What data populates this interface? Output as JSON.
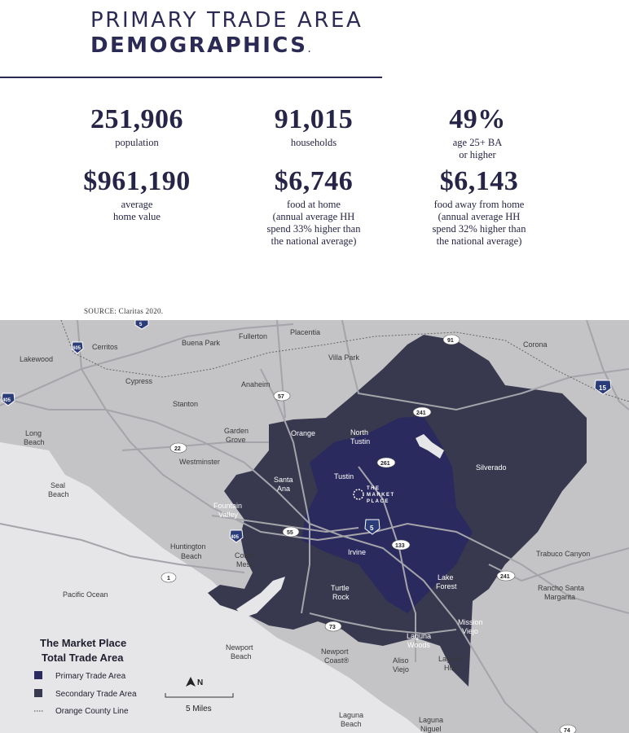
{
  "header": {
    "title_line1": "PRIMARY TRADE AREA",
    "title_line2": "DEMOGRAPHICS",
    "title_period": "."
  },
  "stats": [
    {
      "value": "251,906",
      "label": "population"
    },
    {
      "value": "91,015",
      "label": "households"
    },
    {
      "value": "49%",
      "label": "age 25+ BA\nor higher"
    },
    {
      "value": "$961,190",
      "label": "average\nhome value"
    },
    {
      "value": "$6,746",
      "label": "food at home\n(annual average HH\nspend 33% higher than\nthe national average)"
    },
    {
      "value": "$6,143",
      "label": "food away from home\n(annual average HH\nspend 32% higher than\nthe national average)"
    }
  ],
  "source": "SOURCE: Claritas 2020.",
  "map": {
    "colors": {
      "primary": "#2b2a5e",
      "secondary": "#38384f",
      "land": "#c4c4c7",
      "water": "#e6e6e8",
      "roads": "#ababaf"
    },
    "places": {
      "lakewood": "Lakewood",
      "cerritos": "Cerritos",
      "buena_park": "Buena Park",
      "fullerton": "Fullerton",
      "placentia": "Placentia",
      "corona": "Corona",
      "cypress": "Cypress",
      "anaheim": "Anaheim",
      "villa_park": "Villa Park",
      "stanton": "Stanton",
      "garden": "Garden",
      "grove": "Grove",
      "orange": "Orange",
      "north": "North",
      "tustin_n": "Tustin",
      "long": "Long",
      "beach": "Beach",
      "westminster": "Westminster",
      "silverado": "Silverado",
      "tustin": "Tustin",
      "santa": "Santa",
      "ana": "Ana",
      "seal": "Seal",
      "seal_beach": "Beach",
      "fountain": "Fountain",
      "valley": "Valley",
      "irvine": "Irvine",
      "huntington": "Huntington",
      "hb_beach": "Beach",
      "costa": "Costa",
      "mesa": "Mesa",
      "trabuco": "Trabuco Canyon",
      "lake": "Lake",
      "forest": "Forest",
      "rsm1": "Rancho Santa",
      "rsm2": "Margarita",
      "pacific": "Pacific Ocean",
      "turtle": "Turtle",
      "rock": "Rock",
      "mission": "Mission",
      "viejo": "Viejo",
      "laguna_w1": "Laguna",
      "laguna_w2": "Woods",
      "newport": "Newport",
      "np_beach": "Beach",
      "aliso": "Aliso",
      "aliso_v": "Viejo",
      "laguna_h1": "Laguna",
      "laguna_h2": "Hills",
      "nc1": "Newport",
      "nc2": "Coast®",
      "lb2_1": "Laguna",
      "lb2_2": "Beach",
      "ln1": "Laguna",
      "ln2": "Niguel"
    },
    "highways": {
      "i605": "605",
      "i405a": "405",
      "i405b": "405",
      "i15": "15",
      "i5": "5",
      "r91": "91",
      "r57": "57",
      "r22": "22",
      "r241a": "241",
      "r241b": "241",
      "r261": "261",
      "r55": "55",
      "r133": "133",
      "r1": "1",
      "r73": "73",
      "r74": "74",
      "i5top": "5"
    },
    "logo": {
      "the": "THE",
      "market": "MARKET",
      "place": "PLACE"
    },
    "legend": {
      "title_line1": "The Market Place",
      "title_line2": "Total Trade Area",
      "primary": "Primary Trade Area",
      "secondary": "Secondary Trade Area",
      "county_line": "Orange County Line"
    },
    "scale": {
      "label": "5 Miles",
      "north": "N"
    }
  }
}
